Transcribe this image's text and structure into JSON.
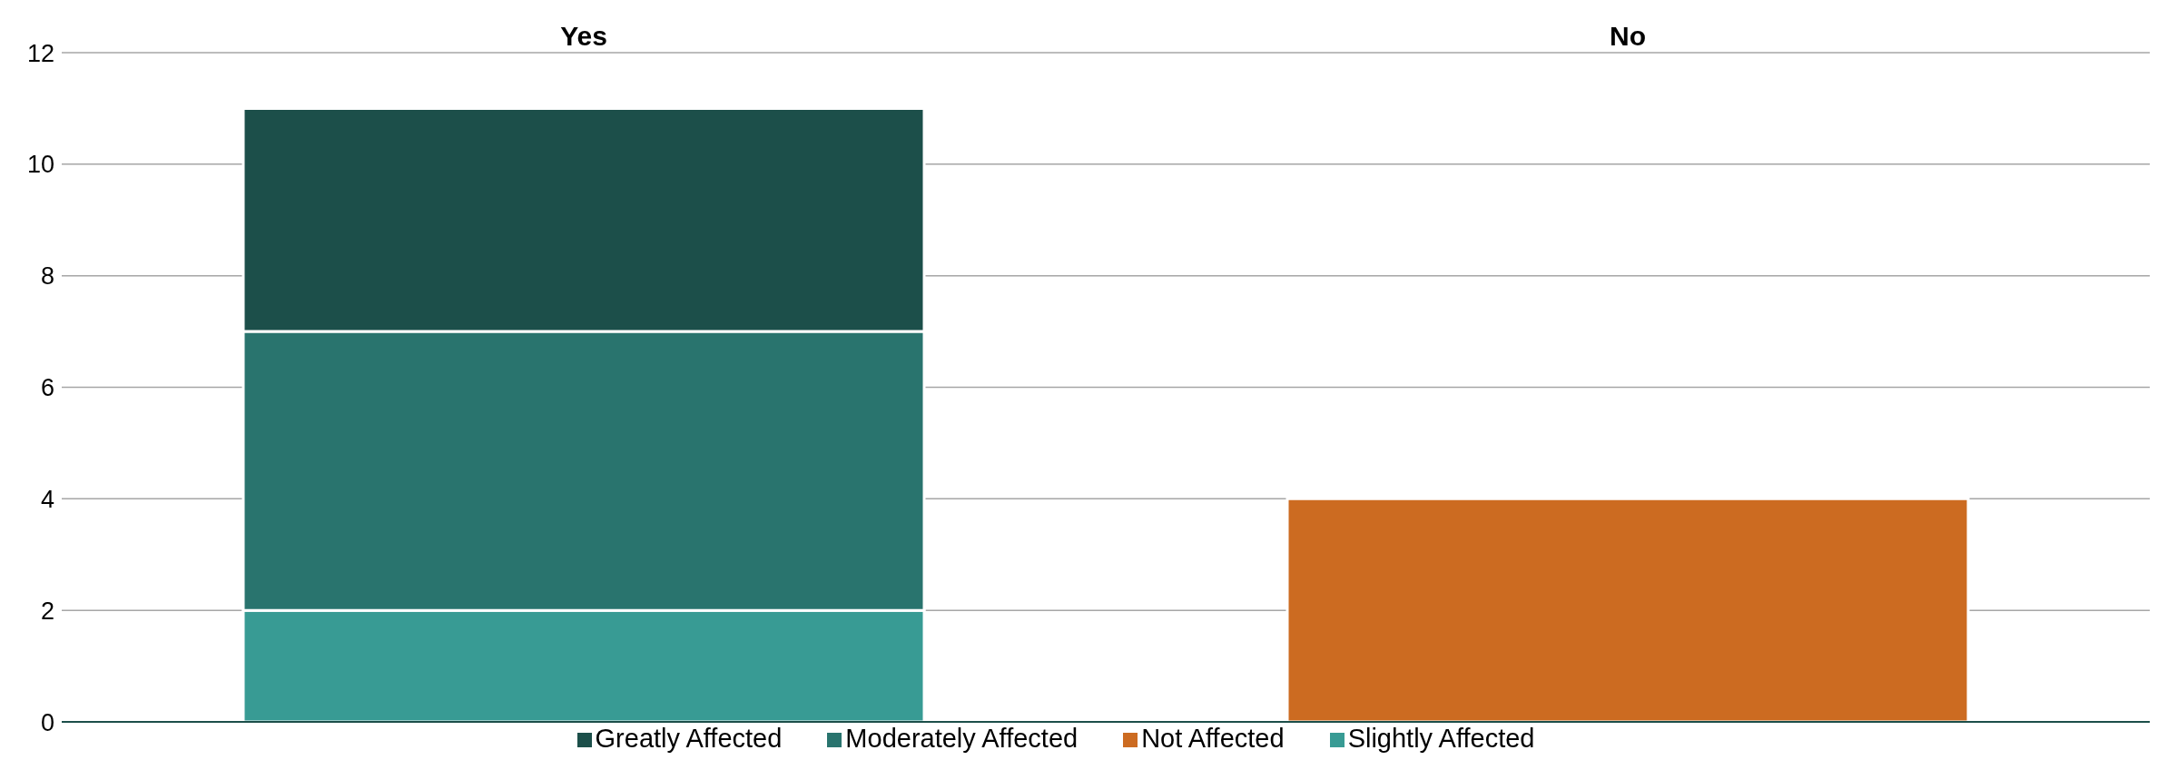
{
  "chart_data": {
    "type": "bar",
    "stacked": true,
    "categories": [
      "Yes",
      "No"
    ],
    "series": [
      {
        "name": "Not Affected",
        "color": "#cc6b21",
        "values": [
          0,
          4
        ]
      },
      {
        "name": "Slightly Affected",
        "color": "#389b94",
        "values": [
          2,
          0
        ]
      },
      {
        "name": "Moderately Affected",
        "color": "#29746e",
        "values": [
          5,
          0
        ]
      },
      {
        "name": "Greatly Affected",
        "color": "#1c4f4a",
        "values": [
          4,
          0
        ]
      }
    ],
    "ylim": [
      0,
      12
    ],
    "yticks": [
      0,
      2,
      4,
      6,
      8,
      10,
      12
    ],
    "grid": "y",
    "legend": "bottom"
  }
}
